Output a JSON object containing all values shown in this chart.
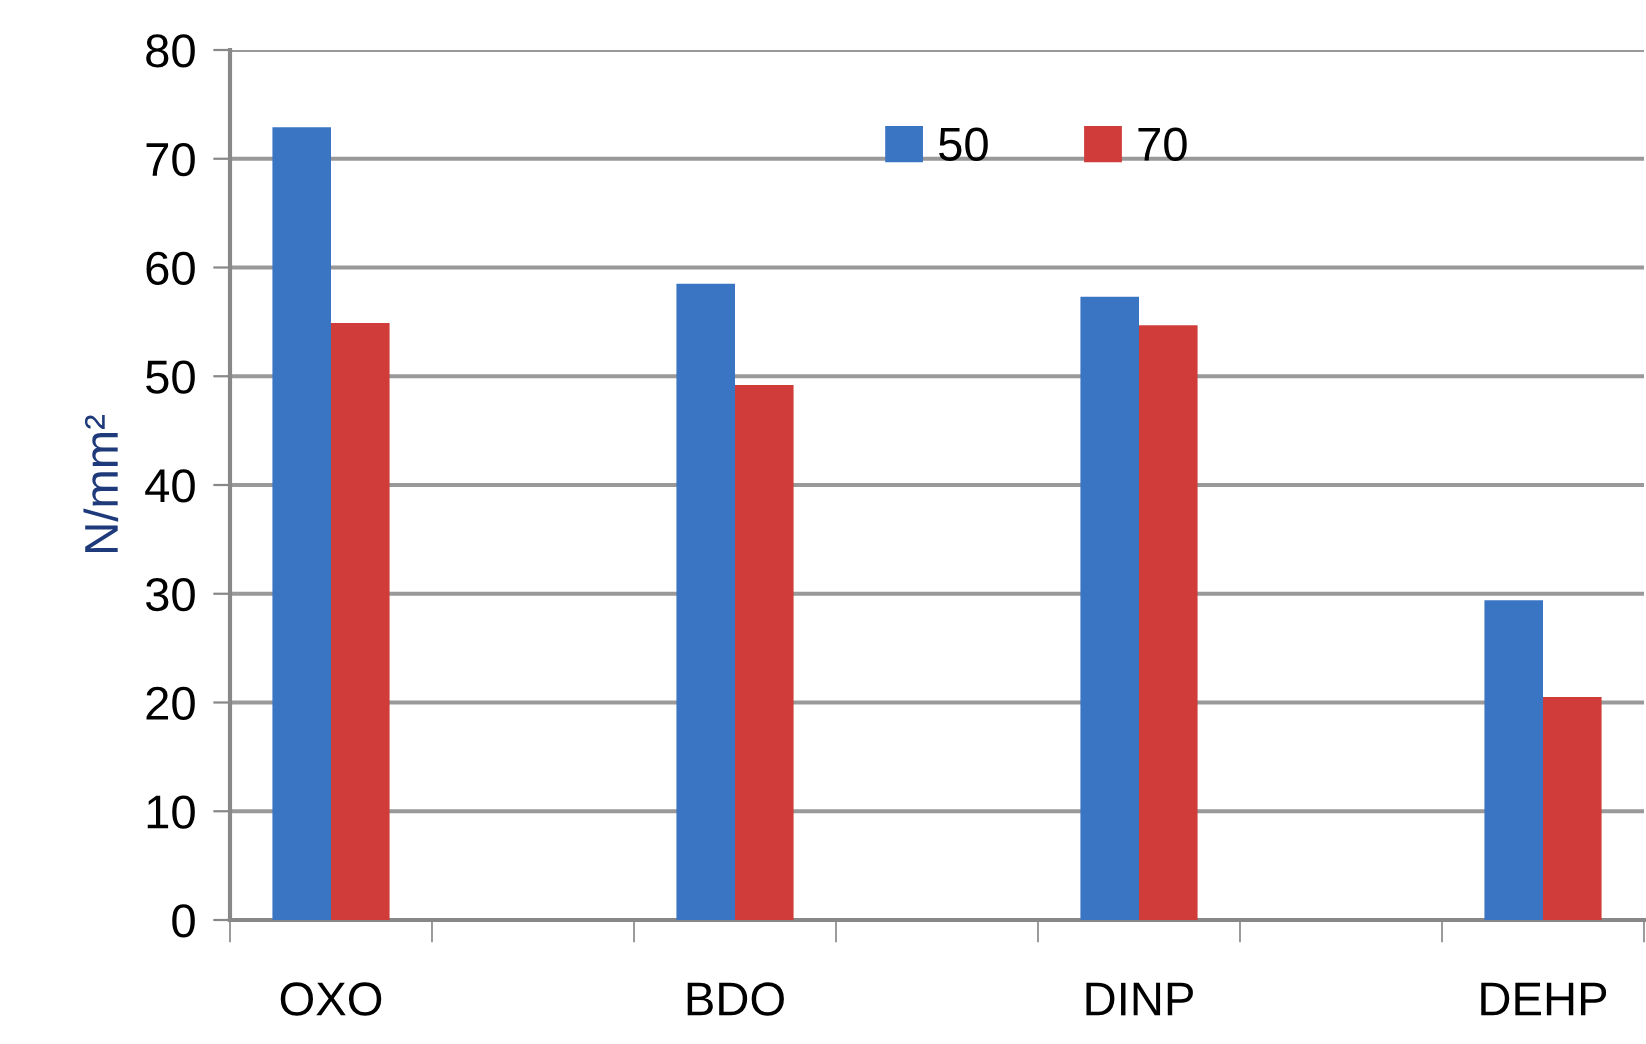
{
  "chart_data": {
    "type": "bar",
    "categories": [
      "OXO",
      null,
      "BDO",
      null,
      "DINP",
      null,
      "DEHP"
    ],
    "series": [
      {
        "name": "50",
        "color": "#3a75c4",
        "values": [
          72.9,
          null,
          58.5,
          null,
          57.3,
          null,
          29.4
        ]
      },
      {
        "name": "70",
        "color": "#d03c3a",
        "values": [
          54.9,
          null,
          49.2,
          null,
          54.7,
          null,
          20.5
        ]
      }
    ],
    "ylabel": "N/mm²",
    "ylim": [
      0,
      80
    ],
    "yticks": [
      0,
      10,
      20,
      30,
      40,
      50,
      60,
      70,
      80
    ],
    "grid": "y",
    "legend": "top right"
  }
}
